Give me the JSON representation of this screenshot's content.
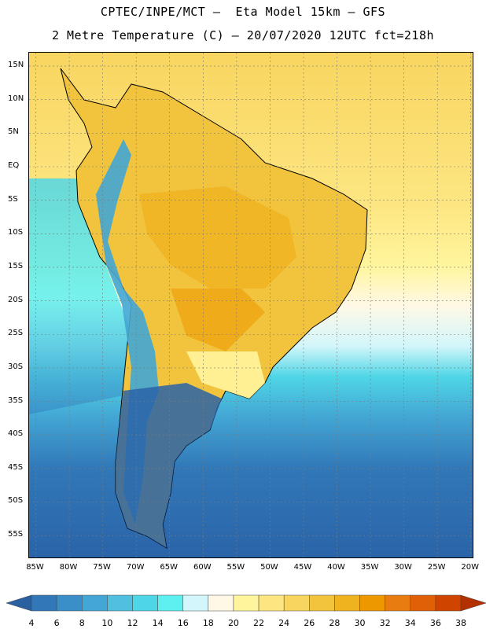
{
  "title_line1": "CPTEC/INPE/MCT –  Eta Model 15km – GFS",
  "title_line2": "2 Metre Temperature (C) – 20/07/2020 12UTC fct=218h",
  "lat_labels": [
    "15N",
    "10N",
    "5N",
    "EQ",
    "5S",
    "10S",
    "15S",
    "20S",
    "25S",
    "30S",
    "35S",
    "40S",
    "45S",
    "50S",
    "55S"
  ],
  "lat_values": [
    15,
    10,
    5,
    0,
    -5,
    -10,
    -15,
    -20,
    -25,
    -30,
    -35,
    -40,
    -45,
    -50,
    -55
  ],
  "lon_labels": [
    "85W",
    "80W",
    "75W",
    "70W",
    "65W",
    "60W",
    "55W",
    "50W",
    "45W",
    "40W",
    "35W",
    "30W",
    "25W",
    "20W"
  ],
  "lon_values": [
    -85,
    -80,
    -75,
    -70,
    -65,
    -60,
    -55,
    -50,
    -45,
    -40,
    -35,
    -30,
    -25,
    -20
  ],
  "colorbar": {
    "labels": [
      "4",
      "6",
      "8",
      "10",
      "12",
      "14",
      "16",
      "18",
      "20",
      "22",
      "24",
      "26",
      "28",
      "30",
      "32",
      "34",
      "36",
      "38"
    ],
    "colors": [
      "#2a63a8",
      "#3178b8",
      "#3a8fc8",
      "#43a6d4",
      "#4fc0df",
      "#4fd6e6",
      "#5ef0f0",
      "#d2f6fb",
      "#fff8e6",
      "#fff59c",
      "#fde682",
      "#f8d55f",
      "#f2c43d",
      "#f0b320",
      "#ee9800",
      "#e87c10",
      "#e06008",
      "#cf4500",
      "#b33000"
    ],
    "low_color": "#2a5fa0",
    "high_color": "#b33000"
  },
  "map_extent": {
    "lon_min": -86,
    "lon_max": -19.5,
    "lat_min": -58.5,
    "lat_max": 17
  }
}
